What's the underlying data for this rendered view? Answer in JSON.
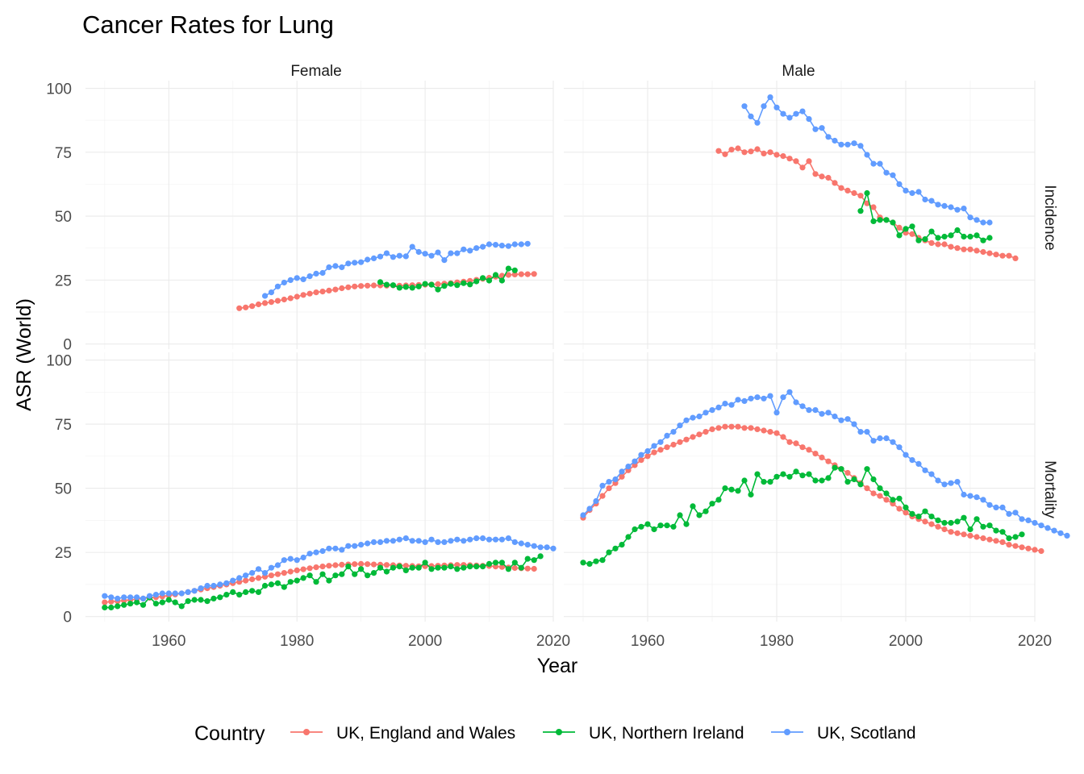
{
  "chart_data": {
    "type": "line",
    "title": "Cancer Rates for Lung",
    "xlabel": "Year",
    "ylabel": "ASR (World)",
    "xlim": [
      1947,
      2020
    ],
    "ylim": [
      0,
      100
    ],
    "xticks": [
      1960,
      1980,
      2000,
      2020
    ],
    "yticks": [
      0,
      25,
      50,
      75,
      100
    ],
    "grid": true,
    "legend_title": "Country",
    "legend_position": "bottom",
    "columns": [
      "Female",
      "Male"
    ],
    "rows": [
      "Incidence",
      "Mortality"
    ],
    "series_colors": {
      "UK, England and Wales": "#F8766D",
      "UK, Northern Ireland": "#00BA38",
      "UK, Scotland": "#619CFF"
    },
    "series_names": [
      "UK, England and Wales",
      "UK, Northern Ireland",
      "UK, Scotland"
    ],
    "panels": [
      {
        "sex": "Female",
        "measure": "Incidence",
        "series": [
          {
            "name": "UK, England and Wales",
            "start": 1971,
            "values": [
              14.0,
              14.3,
              14.8,
              15.5,
              16.0,
              16.4,
              16.9,
              17.4,
              17.9,
              18.5,
              19.2,
              19.7,
              20.2,
              20.5,
              20.9,
              21.3,
              21.8,
              22.2,
              22.5,
              22.7,
              22.8,
              22.9,
              22.9,
              22.8,
              22.9,
              22.8,
              22.9,
              23.0,
              23.1,
              23.2,
              23.3,
              23.4,
              23.6,
              23.8,
              24.1,
              24.4,
              24.7,
              25.1,
              25.5,
              25.9,
              26.3,
              26.7,
              27.0,
              27.2,
              27.3,
              27.3,
              27.4
            ]
          },
          {
            "name": "UK, Northern Ireland",
            "start": 1993,
            "values": [
              24.2,
              23.2,
              23.0,
              22.0,
              22.3,
              22.0,
              22.5,
              23.5,
              23.2,
              21.3,
              22.7,
              23.5,
              23.0,
              23.8,
              23.3,
              24.5,
              25.8,
              24.8,
              27.0,
              24.8,
              29.5,
              28.8
            ]
          },
          {
            "name": "UK, Scotland",
            "start": 1975,
            "values": [
              18.8,
              20.2,
              22.5,
              24.0,
              25.0,
              25.8,
              25.3,
              26.5,
              27.5,
              27.8,
              30.0,
              30.5,
              30.0,
              31.5,
              31.8,
              32.0,
              33.0,
              33.5,
              34.2,
              35.5,
              34.0,
              34.5,
              34.3,
              38.0,
              36.0,
              35.3,
              34.5,
              35.8,
              32.8,
              35.5,
              35.5,
              37.0,
              36.5,
              37.5,
              38.0,
              39.0,
              38.8,
              38.5,
              38.3,
              39.0,
              39.0,
              39.2
            ]
          }
        ]
      },
      {
        "sex": "Male",
        "measure": "Incidence",
        "series": [
          {
            "name": "UK, England and Wales",
            "start": 1971,
            "values": [
              75.5,
              74.2,
              76.0,
              76.5,
              75.0,
              75.3,
              76.2,
              74.5,
              75.0,
              74.0,
              73.5,
              72.5,
              71.5,
              69.0,
              71.5,
              66.5,
              65.5,
              65.0,
              63.0,
              61.0,
              60.0,
              59.0,
              58.0,
              55.0,
              53.5,
              49.5,
              48.5,
              47.5,
              45.5,
              43.5,
              43.0,
              41.5,
              40.5,
              39.5,
              39.0,
              39.0,
              38.0,
              37.5,
              37.0,
              37.0,
              36.5,
              36.0,
              35.5,
              35.0,
              34.5,
              34.5,
              33.5
            ]
          },
          {
            "name": "UK, Northern Ireland",
            "start": 1993,
            "values": [
              52.0,
              59.0,
              48.0,
              48.5,
              48.5,
              47.5,
              42.5,
              45.0,
              46.0,
              40.5,
              41.0,
              44.0,
              41.5,
              42.0,
              42.5,
              44.5,
              42.0,
              42.0,
              42.5,
              40.5,
              41.5
            ]
          },
          {
            "name": "UK, Scotland",
            "start": 1975,
            "values": [
              93.0,
              89.0,
              86.5,
              93.0,
              96.5,
              92.5,
              90.0,
              88.5,
              90.0,
              91.0,
              88.0,
              84.0,
              84.5,
              81.0,
              79.5,
              78.0,
              78.0,
              78.5,
              77.5,
              74.0,
              70.5,
              70.5,
              67.0,
              66.0,
              62.5,
              60.0,
              59.0,
              59.5,
              56.5,
              56.0,
              54.5,
              54.0,
              53.5,
              52.5,
              53.0,
              49.5,
              48.5,
              47.5,
              47.5
            ]
          }
        ]
      },
      {
        "sex": "Female",
        "measure": "Mortality",
        "series": [
          {
            "name": "UK, England and Wales",
            "start": 1950,
            "values": [
              5.5,
              5.8,
              6.0,
              6.2,
              6.5,
              6.8,
              7.0,
              7.3,
              7.5,
              7.8,
              8.2,
              8.6,
              9.0,
              9.5,
              10.0,
              10.5,
              11.0,
              11.5,
              12.0,
              12.5,
              13.0,
              13.5,
              14.0,
              14.5,
              15.0,
              15.5,
              16.0,
              16.5,
              17.0,
              17.5,
              18.0,
              18.4,
              18.8,
              19.2,
              19.5,
              19.8,
              20.0,
              20.2,
              20.3,
              20.4,
              20.5,
              20.4,
              20.3,
              20.2,
              20.1,
              20.0,
              19.9,
              19.8,
              19.7,
              19.6,
              19.6,
              19.7,
              19.8,
              19.9,
              20.0,
              20.1,
              20.1,
              20.0,
              19.9,
              19.8,
              19.7,
              19.5,
              19.3,
              19.1,
              18.9,
              18.8,
              18.7,
              18.6
            ]
          },
          {
            "name": "UK, Northern Ireland",
            "start": 1950,
            "values": [
              3.5,
              3.5,
              4.0,
              4.5,
              5.0,
              5.5,
              4.5,
              7.5,
              5.0,
              5.5,
              6.5,
              5.5,
              4.0,
              6.0,
              6.5,
              6.5,
              6.0,
              7.0,
              7.5,
              8.5,
              9.5,
              8.5,
              9.5,
              10.0,
              9.5,
              12.0,
              12.5,
              13.0,
              11.5,
              13.5,
              14.0,
              15.0,
              16.0,
              13.5,
              16.5,
              14.0,
              16.0,
              16.5,
              19.5,
              16.5,
              18.5,
              16.0,
              17.0,
              19.0,
              17.5,
              19.0,
              19.5,
              18.0,
              19.0,
              19.0,
              21.0,
              18.5,
              19.0,
              19.0,
              19.5,
              18.5,
              19.0,
              19.5,
              19.5,
              19.5,
              20.5,
              21.0,
              21.0,
              18.5,
              21.0,
              19.0,
              22.5,
              22.0,
              23.5
            ]
          },
          {
            "name": "UK, Scotland",
            "start": 1950,
            "values": [
              8.0,
              7.5,
              7.0,
              7.5,
              7.5,
              7.5,
              7.0,
              8.0,
              8.5,
              9.0,
              9.0,
              9.0,
              9.0,
              9.5,
              10.0,
              11.0,
              12.0,
              12.0,
              12.5,
              13.0,
              14.0,
              15.0,
              16.0,
              17.0,
              18.5,
              17.0,
              19.0,
              20.0,
              22.0,
              22.5,
              22.0,
              23.0,
              24.5,
              25.0,
              25.5,
              26.5,
              26.5,
              26.0,
              27.5,
              27.5,
              28.0,
              28.5,
              29.0,
              29.0,
              29.5,
              29.5,
              30.0,
              30.5,
              29.5,
              29.5,
              29.0,
              30.0,
              29.0,
              29.0,
              29.5,
              30.0,
              29.5,
              30.0,
              30.5,
              30.5,
              30.0,
              30.0,
              30.0,
              30.5,
              29.0,
              28.5,
              28.0,
              27.5,
              27.0,
              27.0,
              26.5
            ]
          }
        ]
      },
      {
        "sex": "Male",
        "measure": "Mortality",
        "series": [
          {
            "name": "UK, England and Wales",
            "start": 1950,
            "values": [
              38.5,
              41.5,
              44.0,
              47.0,
              50.0,
              52.0,
              54.5,
              57.0,
              59.0,
              61.0,
              62.5,
              64.0,
              65.0,
              66.0,
              67.0,
              68.0,
              69.0,
              70.0,
              71.0,
              72.0,
              73.0,
              73.5,
              74.0,
              74.0,
              74.0,
              73.5,
              73.5,
              73.0,
              72.5,
              72.0,
              71.5,
              70.0,
              68.0,
              67.5,
              66.0,
              65.0,
              63.5,
              62.0,
              60.5,
              59.0,
              57.5,
              56.0,
              54.0,
              52.0,
              50.0,
              48.0,
              47.0,
              45.5,
              44.0,
              42.0,
              40.5,
              39.0,
              38.0,
              37.0,
              36.0,
              35.0,
              34.0,
              33.0,
              32.5,
              32.0,
              31.5,
              31.0,
              30.5,
              30.0,
              29.5,
              29.0,
              28.0,
              27.5,
              27.0,
              26.5,
              26.0,
              25.5
            ]
          },
          {
            "name": "UK, Northern Ireland",
            "start": 1950,
            "values": [
              21.0,
              20.5,
              21.5,
              22.0,
              25.0,
              26.5,
              28.0,
              31.0,
              34.0,
              35.0,
              36.0,
              34.0,
              35.5,
              35.5,
              35.0,
              39.5,
              36.0,
              43.0,
              39.5,
              41.0,
              44.0,
              45.5,
              50.0,
              49.5,
              49.0,
              53.0,
              47.5,
              55.5,
              52.5,
              52.5,
              54.5,
              55.5,
              54.5,
              56.5,
              55.0,
              55.5,
              53.0,
              53.0,
              54.0,
              58.0,
              57.5,
              52.5,
              53.5,
              51.5,
              57.5,
              53.5,
              50.0,
              48.0,
              45.5,
              46.0,
              42.5,
              40.0,
              39.0,
              41.0,
              39.0,
              37.5,
              36.5,
              36.5,
              37.0,
              38.5,
              34.0,
              38.0,
              35.0,
              35.5,
              33.5,
              33.0,
              30.5,
              31.0,
              32.0
            ]
          },
          {
            "name": "UK, Scotland",
            "start": 1950,
            "values": [
              39.5,
              42.0,
              45.0,
              51.0,
              52.5,
              53.5,
              56.5,
              58.5,
              60.5,
              63.0,
              64.5,
              66.5,
              68.0,
              70.5,
              72.0,
              74.5,
              76.5,
              77.5,
              78.0,
              79.5,
              80.5,
              81.5,
              83.0,
              82.5,
              84.5,
              84.0,
              85.0,
              85.5,
              85.0,
              86.0,
              79.5,
              85.5,
              87.5,
              83.5,
              82.0,
              80.5,
              80.5,
              79.0,
              79.5,
              78.0,
              76.5,
              77.0,
              75.0,
              72.0,
              72.0,
              68.5,
              69.5,
              69.5,
              68.0,
              66.0,
              63.0,
              61.0,
              59.5,
              57.0,
              55.5,
              53.0,
              51.5,
              52.0,
              52.5,
              47.5,
              47.0,
              46.5,
              45.5,
              43.5,
              42.5,
              42.5,
              40.0,
              40.5,
              38.0,
              37.5,
              36.5,
              35.5,
              34.5,
              33.5,
              32.5,
              31.5
            ]
          }
        ]
      }
    ]
  }
}
